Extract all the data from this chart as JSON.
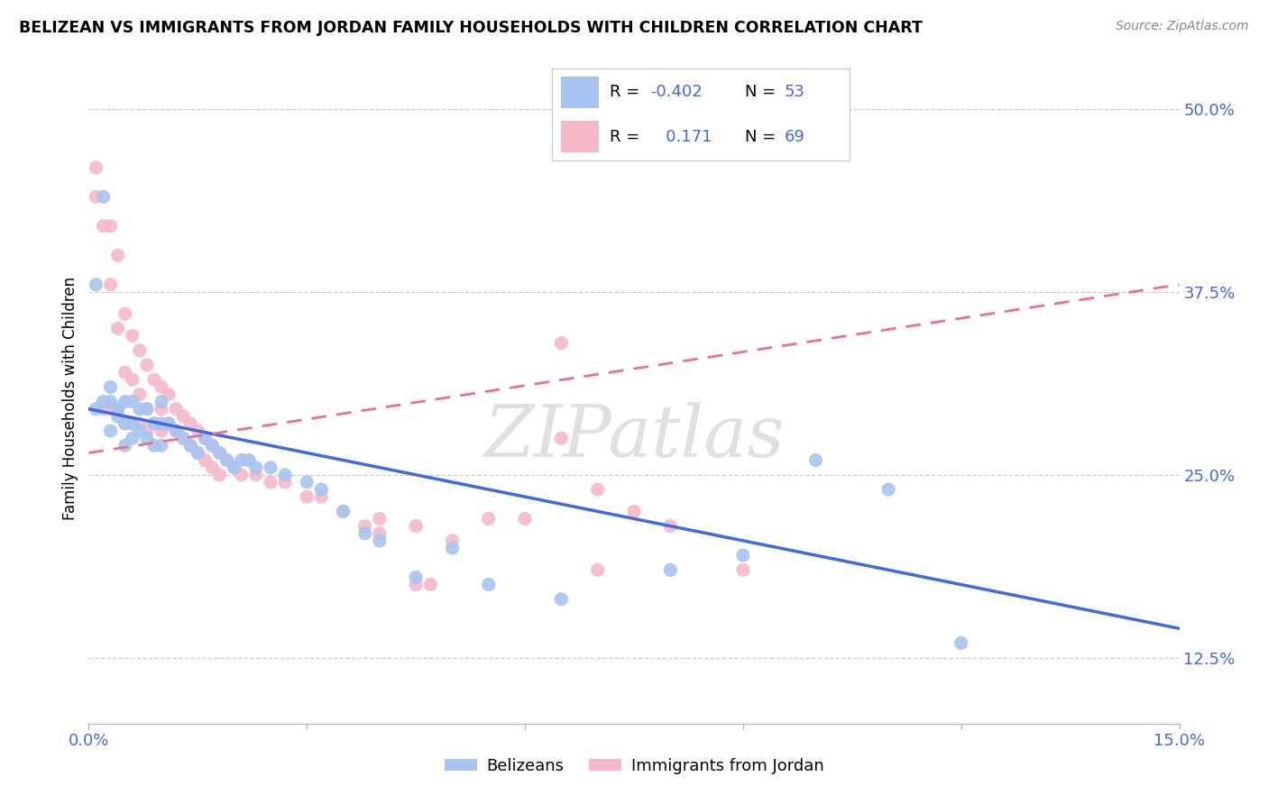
{
  "title": "BELIZEAN VS IMMIGRANTS FROM JORDAN FAMILY HOUSEHOLDS WITH CHILDREN CORRELATION CHART",
  "source": "Source: ZipAtlas.com",
  "ylabel": "Family Households with Children",
  "x_min": 0.0,
  "x_max": 0.15,
  "y_min": 0.08,
  "y_max": 0.525,
  "x_ticks": [
    0.0,
    0.03,
    0.06,
    0.09,
    0.12,
    0.15
  ],
  "x_tick_labels": [
    "0.0%",
    "",
    "",
    "",
    "",
    "15.0%"
  ],
  "y_ticks": [
    0.125,
    0.25,
    0.375,
    0.5
  ],
  "y_tick_labels": [
    "12.5%",
    "25.0%",
    "37.5%",
    "50.0%"
  ],
  "legend_R_blue": "-0.402",
  "legend_N_blue": "53",
  "legend_R_pink": "0.171",
  "legend_N_pink": "69",
  "blue_color": "#a8c4f0",
  "pink_color": "#f5b8c8",
  "blue_line_color": "#4169e1",
  "pink_line_color": "#e87090",
  "watermark": "ZIPatlas",
  "blue_scatter_x": [
    0.001,
    0.001,
    0.002,
    0.002,
    0.003,
    0.003,
    0.003,
    0.004,
    0.004,
    0.005,
    0.005,
    0.005,
    0.006,
    0.006,
    0.006,
    0.007,
    0.007,
    0.008,
    0.008,
    0.009,
    0.009,
    0.01,
    0.01,
    0.01,
    0.011,
    0.012,
    0.013,
    0.014,
    0.015,
    0.016,
    0.017,
    0.018,
    0.019,
    0.02,
    0.021,
    0.022,
    0.023,
    0.025,
    0.027,
    0.03,
    0.032,
    0.035,
    0.038,
    0.04,
    0.045,
    0.05,
    0.055,
    0.065,
    0.08,
    0.09,
    0.1,
    0.11,
    0.12
  ],
  "blue_scatter_y": [
    0.295,
    0.38,
    0.3,
    0.44,
    0.28,
    0.31,
    0.3,
    0.295,
    0.29,
    0.285,
    0.3,
    0.27,
    0.3,
    0.285,
    0.275,
    0.295,
    0.28,
    0.295,
    0.275,
    0.285,
    0.27,
    0.3,
    0.285,
    0.27,
    0.285,
    0.28,
    0.275,
    0.27,
    0.265,
    0.275,
    0.27,
    0.265,
    0.26,
    0.255,
    0.26,
    0.26,
    0.255,
    0.255,
    0.25,
    0.245,
    0.24,
    0.225,
    0.21,
    0.205,
    0.18,
    0.2,
    0.175,
    0.165,
    0.185,
    0.195,
    0.26,
    0.24,
    0.135
  ],
  "pink_scatter_x": [
    0.001,
    0.001,
    0.002,
    0.002,
    0.003,
    0.003,
    0.003,
    0.004,
    0.004,
    0.004,
    0.005,
    0.005,
    0.005,
    0.006,
    0.006,
    0.006,
    0.007,
    0.007,
    0.007,
    0.008,
    0.008,
    0.008,
    0.009,
    0.009,
    0.01,
    0.01,
    0.01,
    0.011,
    0.011,
    0.012,
    0.012,
    0.013,
    0.013,
    0.014,
    0.014,
    0.015,
    0.015,
    0.016,
    0.016,
    0.017,
    0.017,
    0.018,
    0.018,
    0.019,
    0.02,
    0.021,
    0.022,
    0.023,
    0.025,
    0.027,
    0.03,
    0.032,
    0.035,
    0.038,
    0.04,
    0.045,
    0.05,
    0.055,
    0.06,
    0.065,
    0.07,
    0.075,
    0.08,
    0.065,
    0.07,
    0.09,
    0.04,
    0.045,
    0.047
  ],
  "pink_scatter_y": [
    0.46,
    0.44,
    0.42,
    0.295,
    0.42,
    0.38,
    0.295,
    0.4,
    0.35,
    0.295,
    0.36,
    0.32,
    0.285,
    0.345,
    0.315,
    0.285,
    0.335,
    0.305,
    0.285,
    0.325,
    0.295,
    0.28,
    0.315,
    0.285,
    0.31,
    0.295,
    0.28,
    0.305,
    0.285,
    0.295,
    0.28,
    0.29,
    0.275,
    0.285,
    0.27,
    0.28,
    0.265,
    0.275,
    0.26,
    0.27,
    0.255,
    0.265,
    0.25,
    0.26,
    0.255,
    0.25,
    0.26,
    0.25,
    0.245,
    0.245,
    0.235,
    0.235,
    0.225,
    0.215,
    0.22,
    0.215,
    0.205,
    0.22,
    0.22,
    0.275,
    0.24,
    0.225,
    0.215,
    0.34,
    0.185,
    0.185,
    0.21,
    0.175,
    0.175
  ],
  "blue_trendline_x": [
    0.0,
    0.15
  ],
  "blue_trendline_y": [
    0.295,
    0.145
  ],
  "pink_trendline_x": [
    0.0,
    0.15
  ],
  "pink_trendline_y": [
    0.265,
    0.38
  ]
}
